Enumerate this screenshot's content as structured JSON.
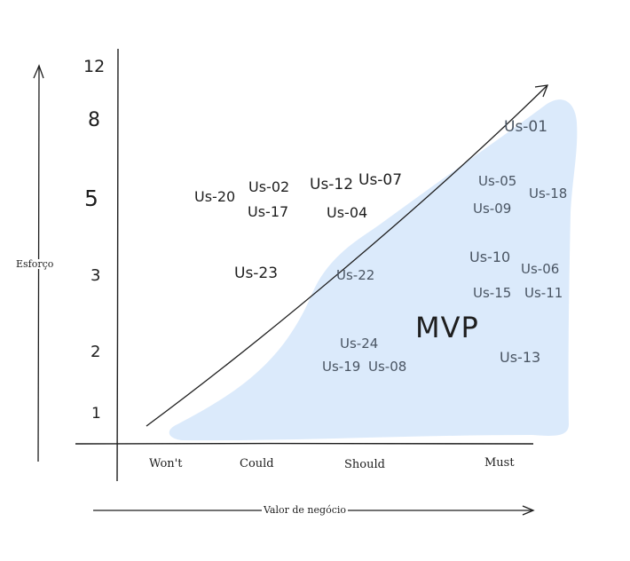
{
  "axes": {
    "y_title": "Esforço",
    "x_title": "Valor de negócio",
    "y_ticks": [
      "12",
      "8",
      "5",
      "3",
      "2",
      "1"
    ],
    "x_ticks": [
      "Won't",
      "Could",
      "Should",
      "Must"
    ]
  },
  "region_label": "MVP",
  "colors": {
    "mvp_fill": "#dbeafb",
    "stroke": "#1e1e1e",
    "inside_text": "#4a5563"
  },
  "stories_outside": [
    "Us-20",
    "Us-02",
    "Us-17",
    "Us-12",
    "Us-07",
    "Us-04",
    "Us-23"
  ],
  "stories_inside": [
    "Us-01",
    "Us-05",
    "Us-18",
    "Us-09",
    "Us-10",
    "Us-06",
    "Us-22",
    "Us-15",
    "Us-11",
    "Us-24",
    "Us-13",
    "Us-19",
    "Us-08"
  ]
}
